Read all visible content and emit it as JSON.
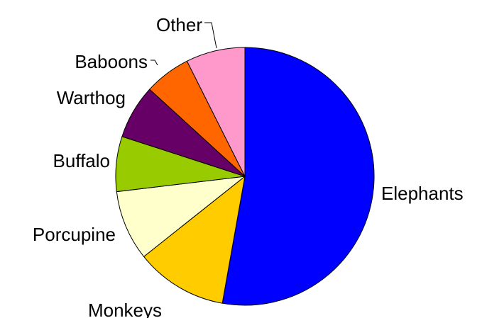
{
  "chart_data": {
    "type": "pie",
    "title": "",
    "start_angle": "12 o'clock",
    "direction": "clockwise",
    "legend": "none",
    "slices": [
      {
        "label": "Elephants",
        "value": 52.8,
        "color": "#0000FF"
      },
      {
        "label": "Monkeys",
        "value": 11.5,
        "color": "#FFCC00"
      },
      {
        "label": "Porcupine",
        "value": 8.8,
        "color": "#FFFFCC"
      },
      {
        "label": "Buffalo",
        "value": 6.9,
        "color": "#99CC00"
      },
      {
        "label": "Warthog",
        "value": 6.8,
        "color": "#660066"
      },
      {
        "label": "Baboons",
        "value": 5.8,
        "color": "#FF6600"
      },
      {
        "label": "Other",
        "value": 7.4,
        "color": "#FF99CC"
      }
    ]
  }
}
